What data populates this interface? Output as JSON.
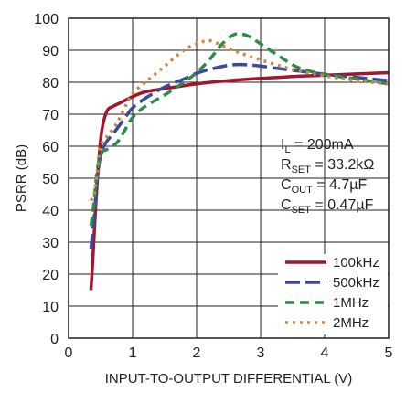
{
  "chart_data": {
    "type": "line",
    "xlabel": "INPUT-TO-OUTPUT DIFFERENTIAL (V)",
    "ylabel": "PSRR (dB)",
    "xlim": [
      0,
      5
    ],
    "ylim": [
      0,
      100
    ],
    "x_ticks": [
      "0",
      "1",
      "2",
      "3",
      "4",
      "5"
    ],
    "y_ticks": [
      "0",
      "10",
      "20",
      "30",
      "40",
      "50",
      "60",
      "70",
      "80",
      "90",
      "100"
    ],
    "grid": true,
    "legend_position": "bottom-right",
    "conditions": [
      {
        "main": "I",
        "sub": "L",
        "rest": " = 200mA"
      },
      {
        "main": "R",
        "sub": "SET",
        "rest": " = 33.2kΩ"
      },
      {
        "main": "C",
        "sub": "OUT",
        "rest": " = 4.7µF"
      },
      {
        "main": "C",
        "sub": "SET",
        "rest": " = 0.47µF"
      }
    ],
    "series": [
      {
        "name": "100kHz",
        "color": "#a3162b",
        "dash": "",
        "points": [
          [
            0.35,
            15
          ],
          [
            0.38,
            25
          ],
          [
            0.42,
            40
          ],
          [
            0.47,
            55
          ],
          [
            0.52,
            65
          ],
          [
            0.6,
            71
          ],
          [
            0.7,
            72.5
          ],
          [
            0.8,
            73.5
          ],
          [
            1.0,
            75.5
          ],
          [
            1.2,
            77
          ],
          [
            1.5,
            78
          ],
          [
            2.0,
            79.5
          ],
          [
            2.5,
            80.5
          ],
          [
            3.0,
            81.2
          ],
          [
            3.5,
            81.8
          ],
          [
            4.0,
            82.2
          ],
          [
            4.5,
            82.6
          ],
          [
            5.0,
            83
          ]
        ]
      },
      {
        "name": "500kHz",
        "color": "#3a4a9c",
        "dash": "16 6",
        "points": [
          [
            0.35,
            28
          ],
          [
            0.4,
            38
          ],
          [
            0.45,
            50
          ],
          [
            0.5,
            57
          ],
          [
            0.58,
            61
          ],
          [
            0.7,
            64
          ],
          [
            0.85,
            68
          ],
          [
            1.0,
            72
          ],
          [
            1.2,
            75
          ],
          [
            1.5,
            78.5
          ],
          [
            1.8,
            81
          ],
          [
            2.0,
            82.8
          ],
          [
            2.3,
            84.5
          ],
          [
            2.6,
            85.5
          ],
          [
            2.9,
            85.3
          ],
          [
            3.2,
            84.5
          ],
          [
            3.6,
            83.5
          ],
          [
            4.0,
            82.5
          ],
          [
            4.5,
            81.5
          ],
          [
            5.0,
            80.5
          ]
        ]
      },
      {
        "name": "1MHz",
        "color": "#2e8b4a",
        "dash": "10 6",
        "points": [
          [
            0.35,
            35
          ],
          [
            0.4,
            43
          ],
          [
            0.45,
            53
          ],
          [
            0.52,
            58
          ],
          [
            0.6,
            59
          ],
          [
            0.75,
            61
          ],
          [
            0.85,
            64
          ],
          [
            1.0,
            69
          ],
          [
            1.2,
            72.5
          ],
          [
            1.5,
            76
          ],
          [
            1.8,
            80
          ],
          [
            2.0,
            83
          ],
          [
            2.2,
            87
          ],
          [
            2.4,
            92
          ],
          [
            2.6,
            95
          ],
          [
            2.8,
            94.5
          ],
          [
            3.0,
            92
          ],
          [
            3.3,
            88
          ],
          [
            3.6,
            84.5
          ],
          [
            4.0,
            82.5
          ],
          [
            4.5,
            81
          ],
          [
            5.0,
            79.5
          ]
        ]
      },
      {
        "name": "2MHz",
        "color": "#c98a3e",
        "dash": "3 5",
        "points": [
          [
            0.35,
            43
          ],
          [
            0.4,
            45
          ],
          [
            0.45,
            52
          ],
          [
            0.5,
            60
          ],
          [
            0.6,
            63
          ],
          [
            0.75,
            67
          ],
          [
            0.9,
            73
          ],
          [
            1.0,
            76.5
          ],
          [
            1.2,
            80
          ],
          [
            1.5,
            85
          ],
          [
            1.8,
            90
          ],
          [
            2.0,
            92
          ],
          [
            2.2,
            93
          ],
          [
            2.4,
            91.5
          ],
          [
            2.7,
            89
          ],
          [
            3.0,
            87
          ],
          [
            3.5,
            84
          ],
          [
            4.0,
            82
          ],
          [
            4.5,
            80.5
          ],
          [
            5.0,
            79.5
          ]
        ]
      }
    ]
  }
}
